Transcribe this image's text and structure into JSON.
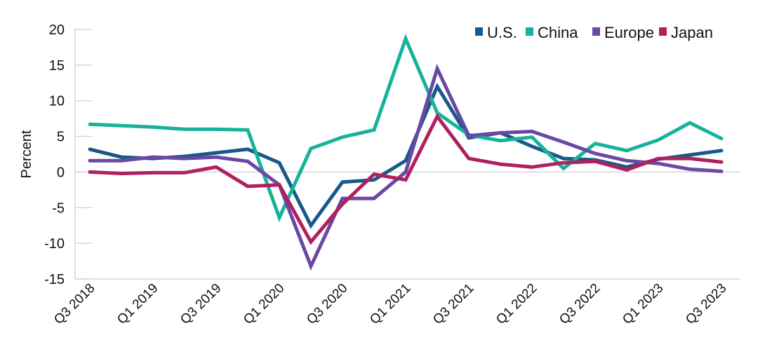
{
  "chart_data": {
    "type": "line",
    "title": "",
    "xlabel": "",
    "ylabel": "Percent",
    "ylim": [
      -15,
      20
    ],
    "yticks": [
      20,
      15,
      10,
      5,
      0,
      -5,
      -10,
      -15
    ],
    "grid": "horizontal tick marks only, zero line",
    "legend_position": "top-right",
    "x": [
      "Q3 2018",
      "Q4 2018",
      "Q1 2019",
      "Q2 2019",
      "Q3 2019",
      "Q4 2019",
      "Q1 2020",
      "Q2 2020",
      "Q3 2020",
      "Q4 2020",
      "Q1 2021",
      "Q2 2021",
      "Q3 2021",
      "Q4 2021",
      "Q1 2022",
      "Q2 2022",
      "Q3 2022",
      "Q4 2022",
      "Q1 2023",
      "Q2 2023",
      "Q3 2023"
    ],
    "xtick_labels": [
      "Q3 2018",
      "Q1 2019",
      "Q3 2019",
      "Q1 2020",
      "Q3 2020",
      "Q1 2021",
      "Q3 2021",
      "Q1 2022",
      "Q3 2022",
      "Q1 2023",
      "Q3 2023"
    ],
    "series": [
      {
        "name": "U.S.",
        "color": "#17598a",
        "values": [
          3.2,
          2.1,
          1.9,
          2.2,
          2.7,
          3.2,
          1.3,
          -7.5,
          -1.4,
          -1.1,
          1.6,
          12.0,
          4.8,
          5.5,
          3.6,
          1.9,
          1.7,
          0.7,
          1.8,
          2.4,
          3.0
        ]
      },
      {
        "name": "China",
        "color": "#18b29b",
        "values": [
          6.7,
          6.5,
          6.3,
          6.0,
          6.0,
          5.9,
          -6.4,
          3.3,
          4.9,
          5.9,
          18.7,
          8.3,
          5.2,
          4.4,
          4.9,
          0.5,
          4.0,
          3.0,
          4.5,
          6.9,
          4.7
        ]
      },
      {
        "name": "Europe",
        "color": "#6a48a4",
        "values": [
          1.6,
          1.6,
          2.1,
          1.9,
          2.1,
          1.5,
          -1.8,
          -13.2,
          -3.7,
          -3.7,
          0.0,
          14.5,
          5.1,
          5.5,
          5.7,
          4.2,
          2.6,
          1.6,
          1.2,
          0.4,
          0.1
        ]
      },
      {
        "name": "Japan",
        "color": "#b0205f",
        "values": [
          0.0,
          -0.2,
          -0.1,
          -0.1,
          0.7,
          -2.0,
          -1.8,
          -9.8,
          -4.5,
          -0.3,
          -1.1,
          7.8,
          1.9,
          1.1,
          0.7,
          1.3,
          1.5,
          0.3,
          1.9,
          1.9,
          1.4
        ]
      }
    ]
  }
}
